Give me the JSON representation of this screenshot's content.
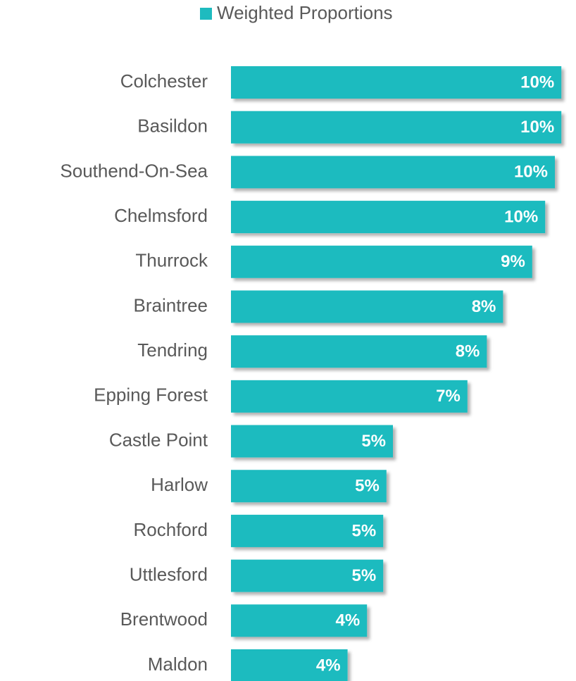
{
  "chart_data": {
    "type": "bar",
    "orientation": "horizontal",
    "categories": [
      "Colchester",
      "Basildon",
      "Southend-On-Sea",
      "Chelmsford",
      "Thurrock",
      "Braintree",
      "Tendring",
      "Epping Forest",
      "Castle Point",
      "Harlow",
      "Rochford",
      "Uttlesford",
      "Brentwood",
      "Maldon"
    ],
    "series": [
      {
        "name": "Weighted Proportions",
        "color": "#1ebbbf",
        "values": [
          10.2,
          10.2,
          10.0,
          9.7,
          9.3,
          8.4,
          7.9,
          7.3,
          5.0,
          4.8,
          4.7,
          4.7,
          4.2,
          3.6
        ],
        "value_labels": [
          "10%",
          "10%",
          "10%",
          "10%",
          "9%",
          "8%",
          "8%",
          "7%",
          "5%",
          "5%",
          "5%",
          "5%",
          "4%",
          "4%"
        ]
      }
    ],
    "legend": "top"
  }
}
